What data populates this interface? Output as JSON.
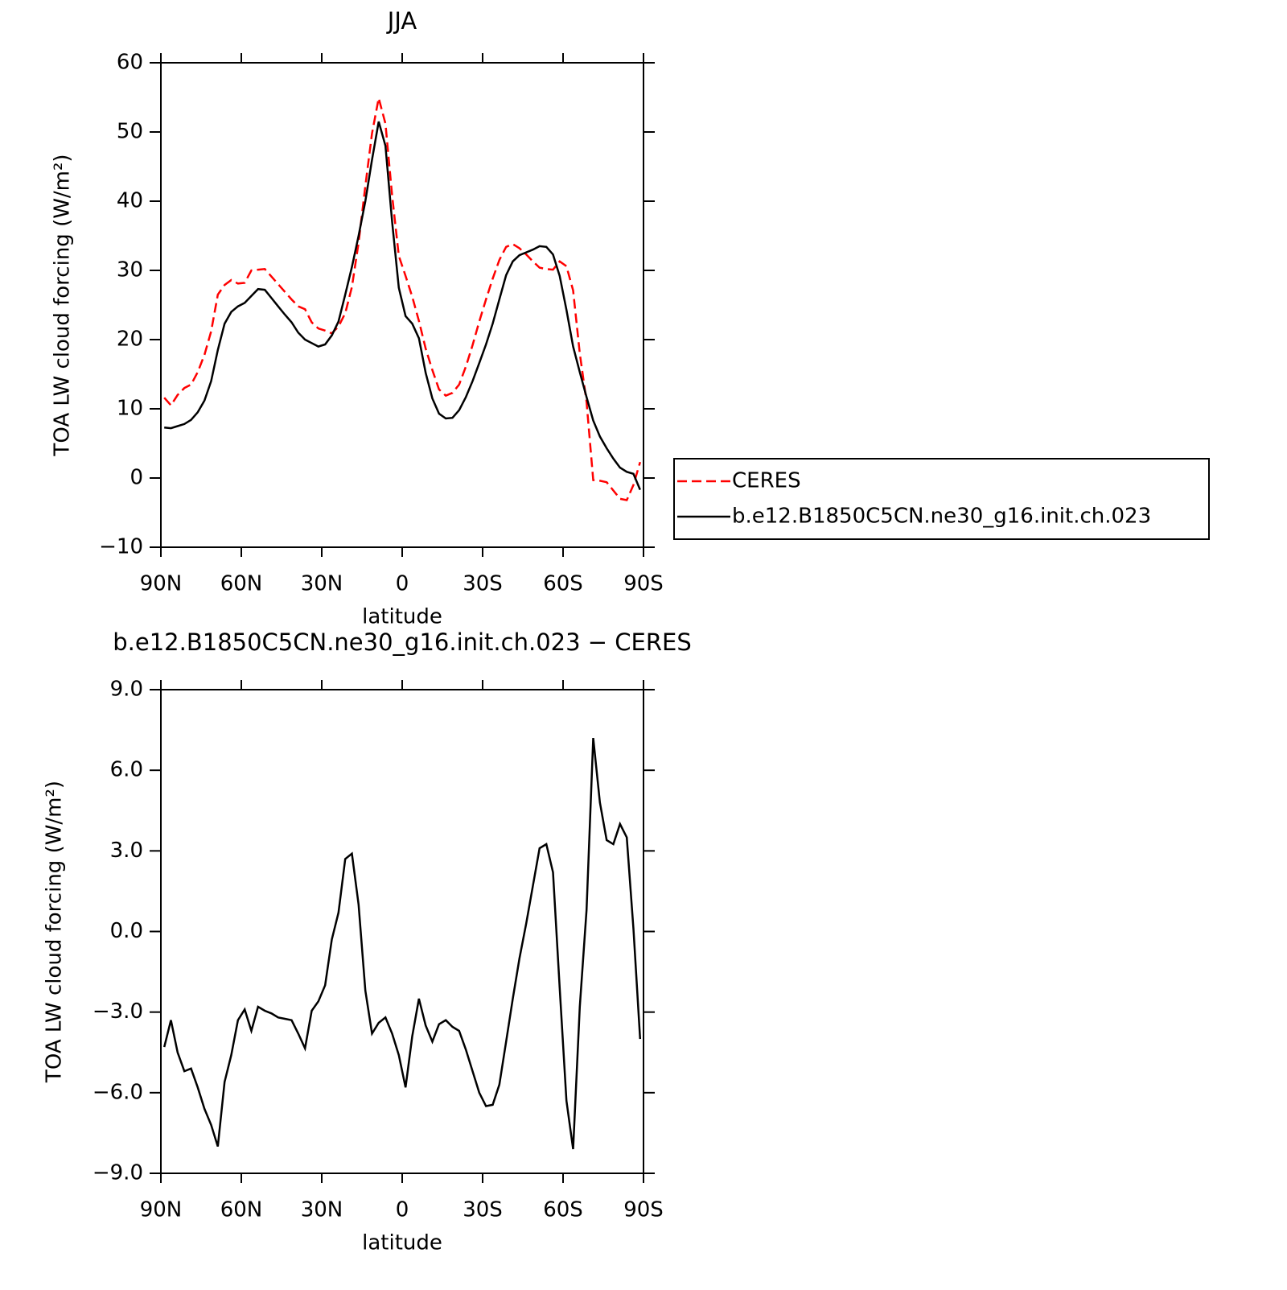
{
  "chart_data": [
    {
      "type": "line",
      "title": "JJA",
      "xlabel": "latitude",
      "ylabel": "TOA LW cloud forcing (W/m²)",
      "x": [
        88.75,
        86.25,
        83.75,
        81.25,
        78.75,
        76.25,
        73.75,
        71.25,
        68.75,
        66.25,
        63.75,
        61.25,
        58.75,
        56.25,
        53.75,
        51.25,
        48.75,
        46.25,
        43.75,
        41.25,
        38.75,
        36.25,
        33.75,
        31.25,
        28.75,
        26.25,
        23.75,
        21.25,
        18.75,
        16.25,
        13.75,
        11.25,
        8.75,
        6.25,
        3.75,
        1.25,
        -1.25,
        -3.75,
        -6.25,
        -8.75,
        -11.25,
        -13.75,
        -16.25,
        -18.75,
        -21.25,
        -23.75,
        -26.25,
        -28.75,
        -31.25,
        -33.75,
        -36.25,
        -38.75,
        -41.25,
        -43.75,
        -46.25,
        -48.75,
        -51.25,
        -53.75,
        -56.25,
        -58.75,
        -61.25,
        -63.75,
        -66.25,
        -68.75,
        -71.25,
        -73.75,
        -76.25,
        -78.75,
        -81.25,
        -83.75,
        -86.25,
        -88.75
      ],
      "series": [
        {
          "name": "CERES",
          "color": "#ff0000",
          "linestyle": "dashed",
          "values": [
            11.6,
            10.5,
            12.0,
            13.0,
            13.5,
            15.3,
            17.8,
            21.2,
            26.5,
            27.9,
            28.6,
            28.1,
            28.2,
            30.0,
            30.1,
            30.2,
            29.1,
            28.0,
            26.9,
            25.8,
            24.8,
            24.4,
            22.5,
            21.6,
            21.3,
            20.9,
            21.9,
            23.8,
            27.6,
            34.0,
            42.2,
            49.8,
            54.9,
            51.2,
            40.8,
            32.1,
            29.2,
            26.2,
            22.7,
            18.7,
            15.6,
            12.8,
            11.9,
            12.3,
            13.5,
            16.1,
            19.2,
            22.6,
            25.8,
            28.8,
            31.5,
            33.4,
            33.8,
            33.2,
            32.3,
            31.3,
            30.4,
            30.2,
            30.1,
            31.3,
            30.6,
            27.1,
            18.0,
            11.0,
            -0.3,
            -0.4,
            -0.6,
            -1.8,
            -3.0,
            -3.2,
            -1.0,
            2.3
          ]
        },
        {
          "name": "b.e12.B1850C5CN.ne30_g16.init.ch.023",
          "color": "#000000",
          "linestyle": "solid",
          "values": [
            7.3,
            7.2,
            7.5,
            7.8,
            8.4,
            9.5,
            11.2,
            14.0,
            18.5,
            22.3,
            24.0,
            24.8,
            25.3,
            26.3,
            27.3,
            27.2,
            26.0,
            24.8,
            23.6,
            22.5,
            21.0,
            20.0,
            19.5,
            19.0,
            19.3,
            20.6,
            22.6,
            26.5,
            30.5,
            35.0,
            40.0,
            46.0,
            51.5,
            48.0,
            37.0,
            27.5,
            23.4,
            22.3,
            20.2,
            15.2,
            11.5,
            9.3,
            8.6,
            8.7,
            9.8,
            11.7,
            14.0,
            16.6,
            19.3,
            22.3,
            25.8,
            29.3,
            31.3,
            32.2,
            32.6,
            33.0,
            33.5,
            33.4,
            32.3,
            29.2,
            24.3,
            19.0,
            15.3,
            11.7,
            8.3,
            6.0,
            4.3,
            2.8,
            1.5,
            0.9,
            0.6,
            -1.7
          ]
        }
      ],
      "xlim": [
        90,
        -90
      ],
      "xticks": [
        {
          "value": 90,
          "label": "90N"
        },
        {
          "value": 60,
          "label": "60N"
        },
        {
          "value": 30,
          "label": "30N"
        },
        0,
        {
          "value": -30,
          "label": "30S"
        },
        {
          "value": -60,
          "label": "60S"
        },
        {
          "value": -90,
          "label": "90S"
        }
      ],
      "ylim": [
        -10,
        60
      ],
      "yticks": [
        {
          "value": -10,
          "label": "−10"
        },
        0,
        10,
        20,
        30,
        40,
        50,
        60
      ],
      "legend": "right"
    },
    {
      "type": "line",
      "title": "b.e12.B1850C5CN.ne30_g16.init.ch.023 − CERES",
      "xlabel": "latitude",
      "ylabel": "TOA LW cloud forcing (W/m²)",
      "x": [
        88.75,
        86.25,
        83.75,
        81.25,
        78.75,
        76.25,
        73.75,
        71.25,
        68.75,
        66.25,
        63.75,
        61.25,
        58.75,
        56.25,
        53.75,
        51.25,
        48.75,
        46.25,
        43.75,
        41.25,
        38.75,
        36.25,
        33.75,
        31.25,
        28.75,
        26.25,
        23.75,
        21.25,
        18.75,
        16.25,
        13.75,
        11.25,
        8.75,
        6.25,
        3.75,
        1.25,
        -1.25,
        -3.75,
        -6.25,
        -8.75,
        -11.25,
        -13.75,
        -16.25,
        -18.75,
        -21.25,
        -23.75,
        -26.25,
        -28.75,
        -31.25,
        -33.75,
        -36.25,
        -38.75,
        -41.25,
        -43.75,
        -46.25,
        -48.75,
        -51.25,
        -53.75,
        -56.25,
        -58.75,
        -61.25,
        -63.75,
        -66.25,
        -68.75,
        -71.25,
        -73.75,
        -76.25,
        -78.75,
        -81.25,
        -83.75,
        -86.25,
        -88.75
      ],
      "series": [
        {
          "color": "#000000",
          "linestyle": "solid",
          "values": [
            -4.3,
            -3.3,
            -4.5,
            -5.2,
            -5.1,
            -5.8,
            -6.6,
            -7.2,
            -8.0,
            -5.6,
            -4.6,
            -3.3,
            -2.9,
            -3.7,
            -2.8,
            -2.95,
            -3.05,
            -3.2,
            -3.25,
            -3.3,
            -3.8,
            -4.35,
            -2.95,
            -2.6,
            -2.0,
            -0.3,
            0.7,
            2.7,
            2.9,
            1.0,
            -2.2,
            -3.8,
            -3.4,
            -3.2,
            -3.8,
            -4.6,
            -5.8,
            -3.9,
            -2.5,
            -3.5,
            -4.1,
            -3.45,
            -3.3,
            -3.55,
            -3.7,
            -4.4,
            -5.2,
            -6.0,
            -6.5,
            -6.45,
            -5.7,
            -4.1,
            -2.5,
            -1.0,
            0.3,
            1.7,
            3.1,
            3.25,
            2.2,
            -2.1,
            -6.3,
            -8.1,
            -2.8,
            0.8,
            7.2,
            4.8,
            3.4,
            3.25,
            4.0,
            3.5,
            0.1,
            -4.0
          ]
        }
      ],
      "xlim": [
        90,
        -90
      ],
      "xticks": [
        {
          "value": 90,
          "label": "90N"
        },
        {
          "value": 60,
          "label": "60N"
        },
        {
          "value": 30,
          "label": "30N"
        },
        0,
        {
          "value": -30,
          "label": "30S"
        },
        {
          "value": -60,
          "label": "60S"
        },
        {
          "value": -90,
          "label": "90S"
        }
      ],
      "ylim": [
        -9,
        9
      ],
      "yticks": [
        {
          "value": -9,
          "label": "−9.0"
        },
        {
          "value": -6,
          "label": "−6.0"
        },
        {
          "value": -3,
          "label": "−3.0"
        },
        {
          "value": 0,
          "label": "0.0"
        },
        {
          "value": 3,
          "label": "3.0"
        },
        {
          "value": 6,
          "label": "6.0"
        },
        {
          "value": 9,
          "label": "9.0"
        }
      ]
    }
  ]
}
